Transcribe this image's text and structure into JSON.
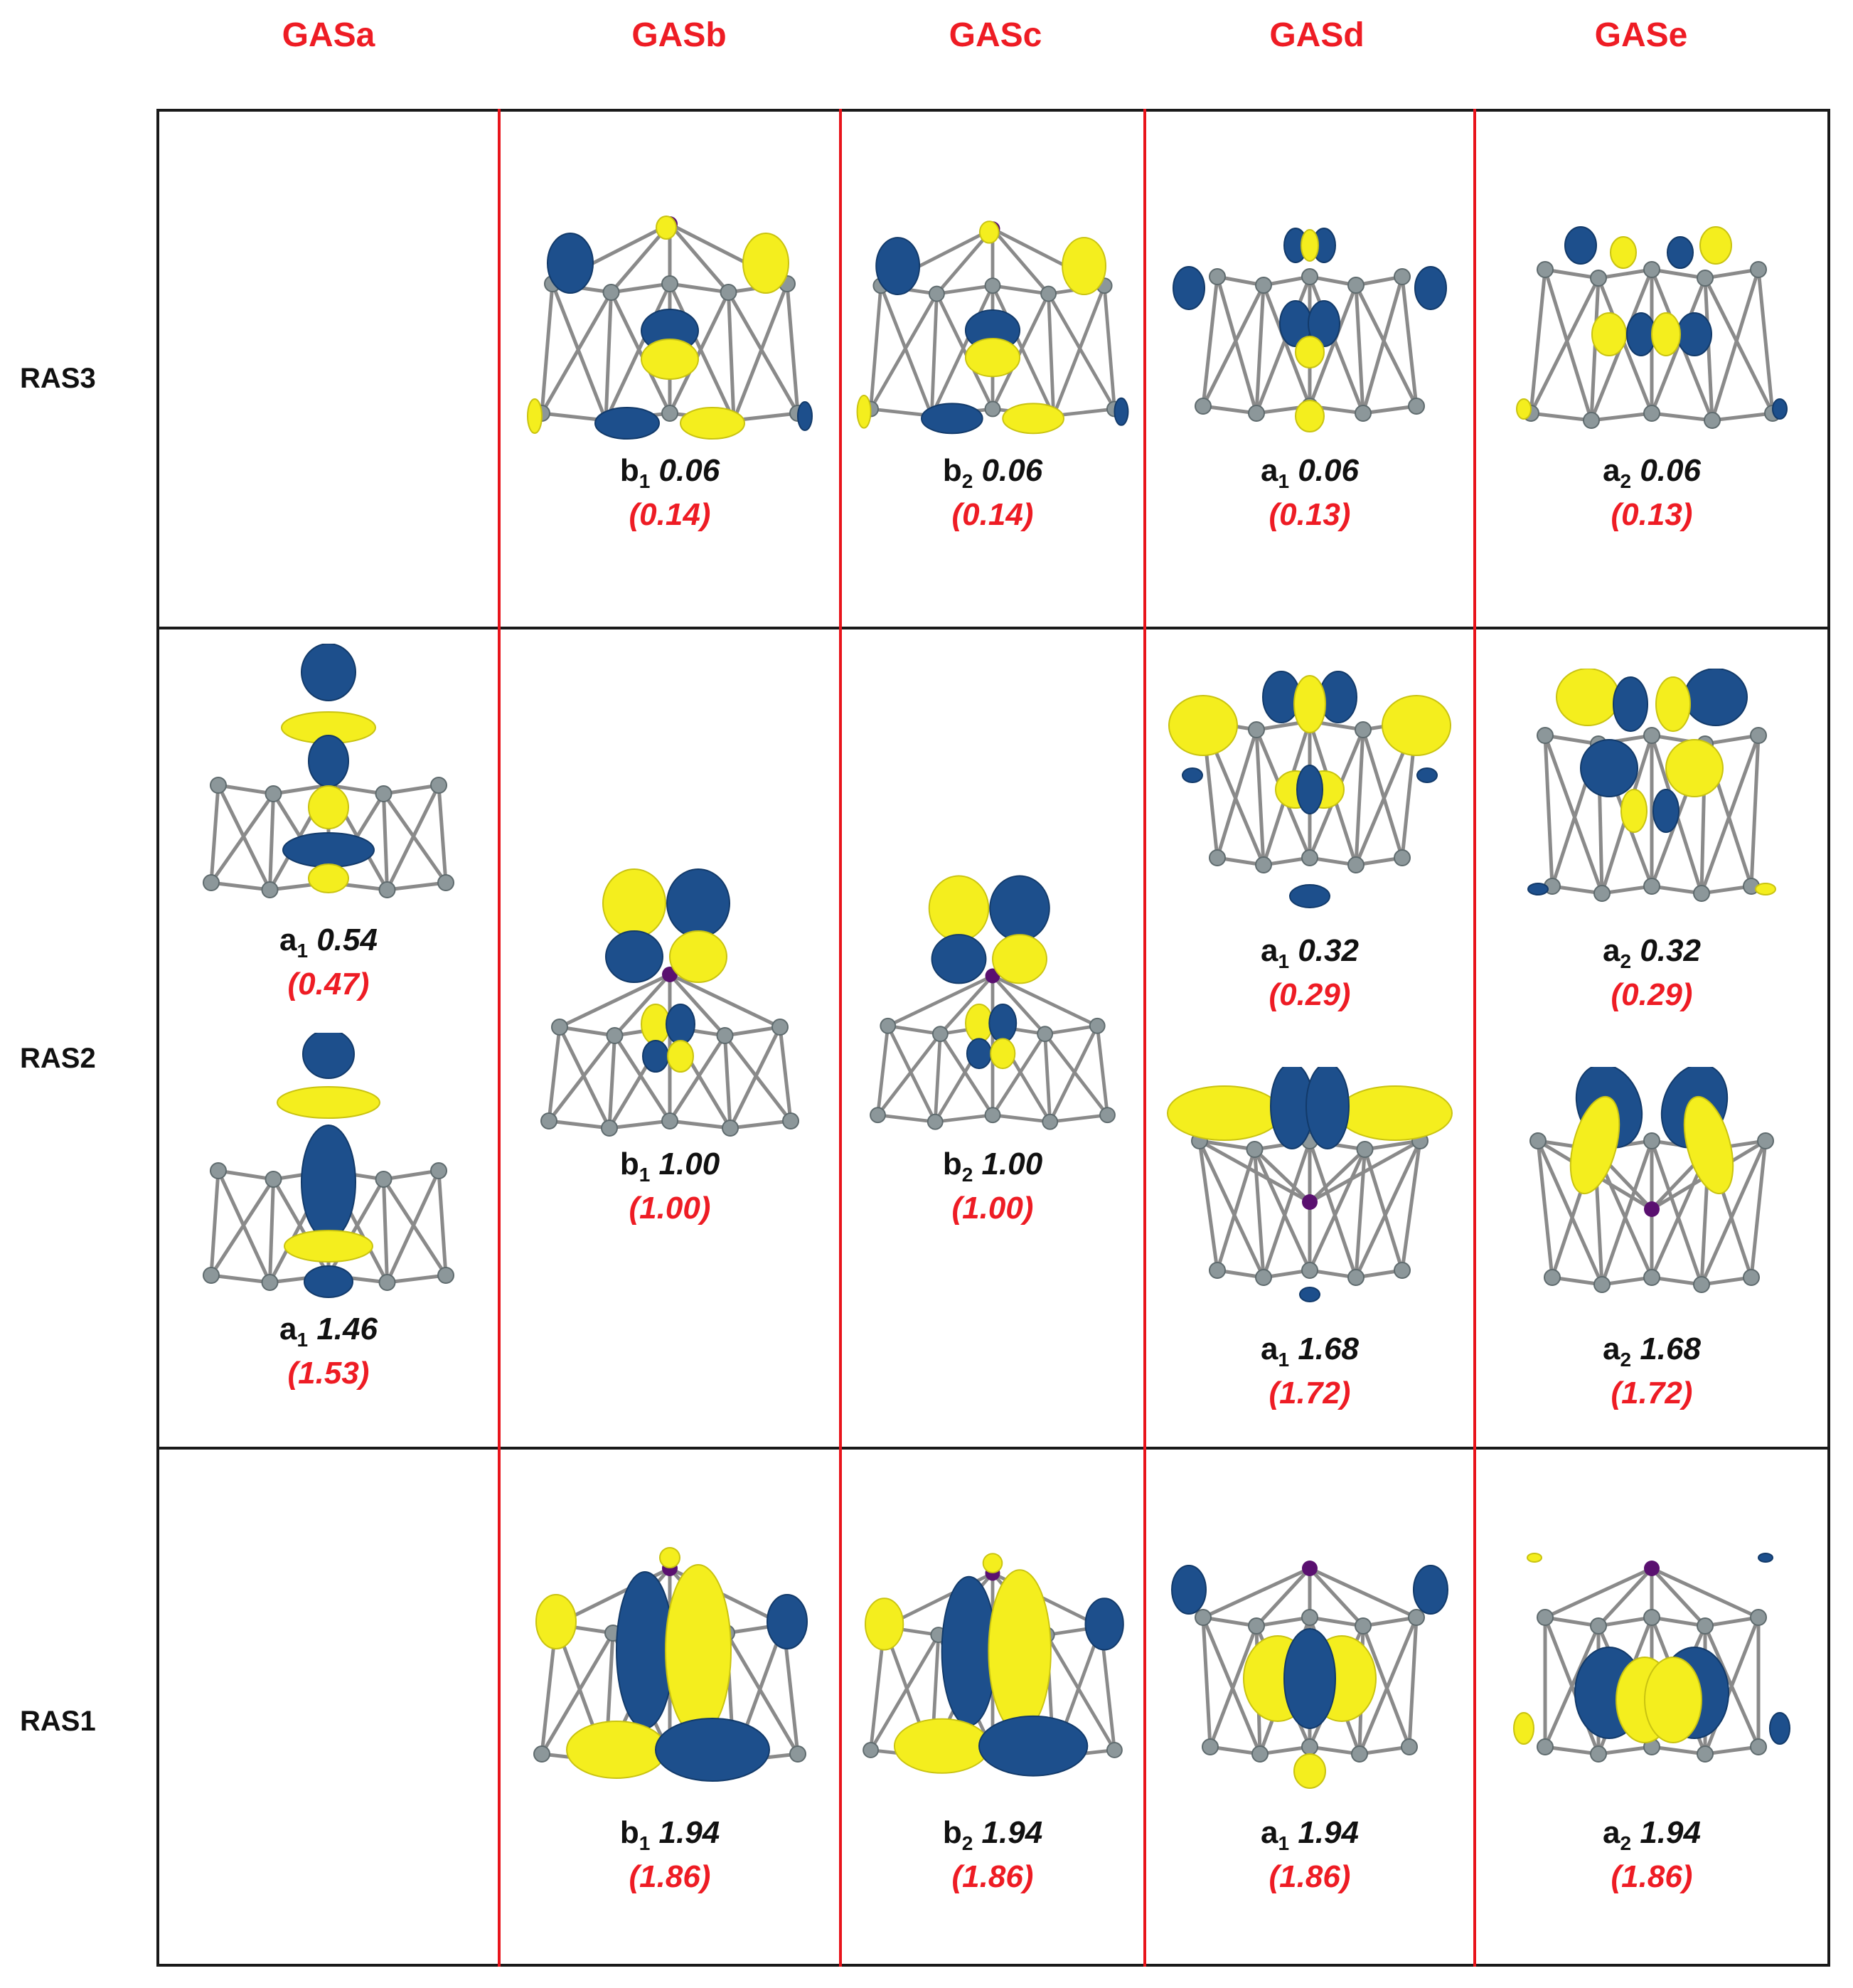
{
  "columns": [
    "GASa",
    "GASb",
    "GASc",
    "GASd",
    "GASe"
  ],
  "rows": [
    "RAS3",
    "RAS2",
    "RAS1"
  ],
  "colors": {
    "positive_lobe": "#f4ee1e",
    "negative_lobe": "#1d4f8c",
    "atom": "#8c979a",
    "bond": "#8a8a8a",
    "metal_atom": "#5a1070",
    "header": "#ee1c24",
    "grid_divider": "#e8141b"
  },
  "orbitals": {
    "ras3": {
      "gasb": {
        "sym": "b",
        "sub": "1",
        "occ": "0.06",
        "ref": "(0.14)",
        "icon": "b1-orbital-isosurface"
      },
      "gasc": {
        "sym": "b",
        "sub": "2",
        "occ": "0.06",
        "ref": "(0.14)",
        "icon": "b2-orbital-isosurface"
      },
      "gasd": {
        "sym": "a",
        "sub": "1",
        "occ": "0.06",
        "ref": "(0.13)",
        "icon": "a1-orbital-isosurface"
      },
      "gase": {
        "sym": "a",
        "sub": "2",
        "occ": "0.06",
        "ref": "(0.13)",
        "icon": "a2-orbital-isosurface"
      }
    },
    "ras2": {
      "gasa_top": {
        "sym": "a",
        "sub": "1",
        "occ": "0.54",
        "ref": "(0.47)",
        "icon": "a1-orbital-isosurface"
      },
      "gasa_bottom": {
        "sym": "a",
        "sub": "1",
        "occ": "1.46",
        "ref": "(1.53)",
        "icon": "a1-orbital-isosurface"
      },
      "gasb": {
        "sym": "b",
        "sub": "1",
        "occ": "1.00",
        "ref": "(1.00)",
        "icon": "b1-orbital-isosurface"
      },
      "gasc": {
        "sym": "b",
        "sub": "2",
        "occ": "1.00",
        "ref": "(1.00)",
        "icon": "b2-orbital-isosurface"
      },
      "gasd_top": {
        "sym": "a",
        "sub": "1",
        "occ": "0.32",
        "ref": "(0.29)",
        "icon": "a1-orbital-isosurface"
      },
      "gasd_bottom": {
        "sym": "a",
        "sub": "1",
        "occ": "1.68",
        "ref": "(1.72)",
        "icon": "a1-orbital-isosurface"
      },
      "gase_top": {
        "sym": "a",
        "sub": "2",
        "occ": "0.32",
        "ref": "(0.29)",
        "icon": "a2-orbital-isosurface"
      },
      "gase_bottom": {
        "sym": "a",
        "sub": "2",
        "occ": "1.68",
        "ref": "(1.72)",
        "icon": "a2-orbital-isosurface"
      }
    },
    "ras1": {
      "gasb": {
        "sym": "b",
        "sub": "1",
        "occ": "1.94",
        "ref": "(1.86)",
        "icon": "b1-orbital-isosurface"
      },
      "gasc": {
        "sym": "b",
        "sub": "2",
        "occ": "1.94",
        "ref": "(1.86)",
        "icon": "b2-orbital-isosurface"
      },
      "gasd": {
        "sym": "a",
        "sub": "1",
        "occ": "1.94",
        "ref": "(1.86)",
        "icon": "a1-orbital-isosurface"
      },
      "gase": {
        "sym": "a",
        "sub": "2",
        "occ": "1.94",
        "ref": "(1.86)",
        "icon": "a2-orbital-isosurface"
      }
    }
  }
}
